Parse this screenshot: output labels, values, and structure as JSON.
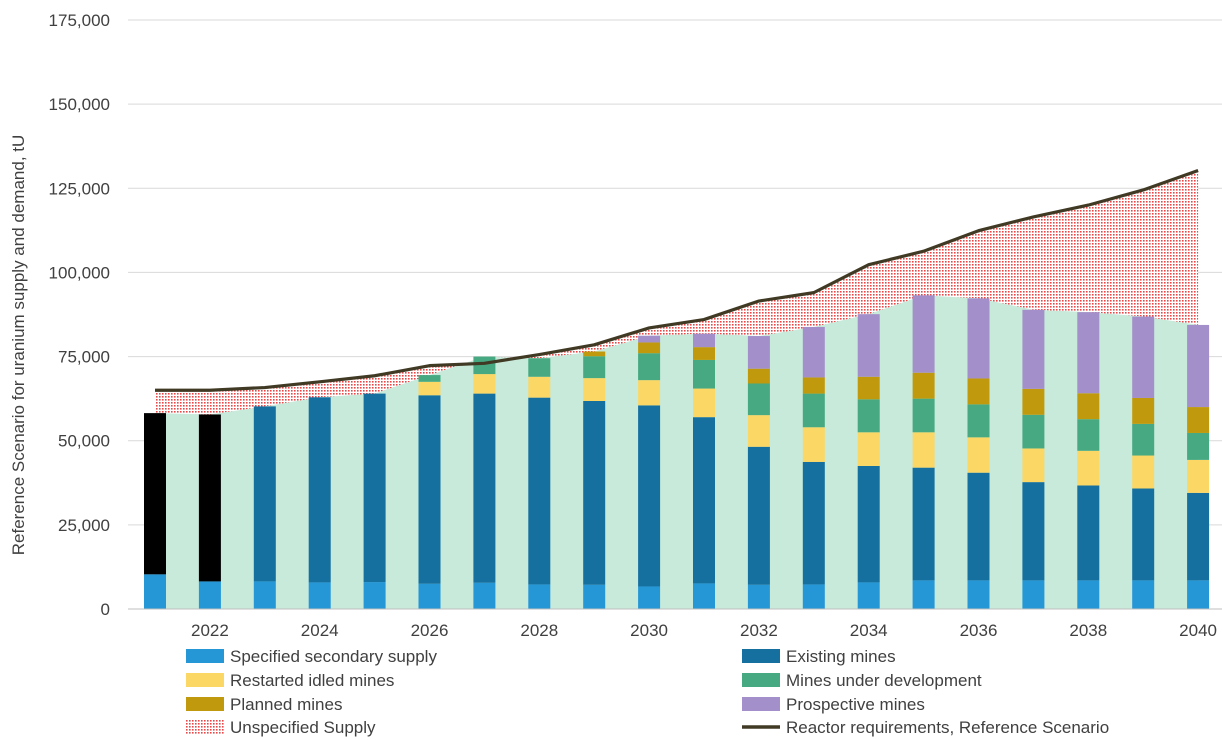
{
  "colors": {
    "specified": "#2596d6",
    "existing": "#1570a0",
    "restarted": "#fbd766",
    "development": "#46a982",
    "planned": "#c09a0c",
    "prospective": "#a38fc9",
    "unspecified": "#e84848",
    "reactor": "#403a25",
    "fill": "#c7eadb",
    "black": "#000000",
    "grid": "#d9d9d9"
  },
  "chart_data": {
    "type": "bar",
    "ylabel": "Reference Scenario for uranium supply and demand, tU",
    "ylim": [
      0,
      175000
    ],
    "yticks": [
      "0",
      "25,000",
      "50,000",
      "75,000",
      "100,000",
      "125,000",
      "150,000",
      "175,000"
    ],
    "xticks": [
      "2022",
      "2024",
      "2026",
      "2028",
      "2030",
      "2032",
      "2034",
      "2036",
      "2038",
      "2040"
    ],
    "years": [
      2021,
      2022,
      2023,
      2024,
      2025,
      2026,
      2027,
      2028,
      2029,
      2030,
      2031,
      2032,
      2033,
      2034,
      2035,
      2036,
      2037,
      2038,
      2039,
      2040
    ],
    "series": [
      {
        "name": "Specified secondary supply",
        "key": "specified",
        "values": [
          10300,
          8200,
          8200,
          7900,
          8000,
          7500,
          7800,
          7300,
          7200,
          6700,
          7600,
          7200,
          7300,
          7900,
          8500,
          8500,
          8500,
          8500,
          8500,
          8500
        ]
      },
      {
        "name": "Existing mines",
        "key": "existing",
        "values": [
          0,
          0,
          52000,
          55000,
          56000,
          56000,
          56200,
          55500,
          54600,
          53800,
          49400,
          41000,
          36400,
          34600,
          33500,
          32000,
          29200,
          28200,
          27300,
          26000
        ]
      },
      {
        "name": "Restarted idled mines",
        "key": "restarted",
        "values": [
          0,
          0,
          0,
          0,
          0,
          4000,
          5800,
          6200,
          6800,
          7500,
          8500,
          9400,
          10300,
          10000,
          10500,
          10500,
          10000,
          10300,
          9800,
          9800
        ]
      },
      {
        "name": "Mines under development",
        "key": "development",
        "values": [
          0,
          0,
          0,
          0,
          0,
          2000,
          5200,
          5500,
          6500,
          8000,
          8500,
          9400,
          10000,
          9800,
          10000,
          9800,
          10000,
          9400,
          9400,
          8000
        ]
      },
      {
        "name": "Planned mines",
        "key": "planned",
        "values": [
          0,
          0,
          0,
          0,
          0,
          0,
          0,
          0,
          1400,
          3200,
          3800,
          4400,
          4800,
          6700,
          7700,
          7700,
          7700,
          7700,
          7700,
          7700
        ]
      },
      {
        "name": "Prospective mines",
        "key": "prospective",
        "values": [
          0,
          0,
          0,
          0,
          0,
          0,
          0,
          0,
          0,
          2000,
          4000,
          9700,
          15000,
          18600,
          23000,
          23800,
          23500,
          24100,
          24200,
          24400
        ]
      },
      {
        "name": "Reactor requirements, Reference Scenario",
        "key": "reactor",
        "values": [
          65000,
          65000,
          65800,
          67500,
          69300,
          72300,
          73000,
          75600,
          78500,
          83500,
          86000,
          91500,
          94000,
          102300,
          106300,
          112400,
          116500,
          120000,
          124500,
          130300
        ]
      }
    ],
    "black_bars": [
      {
        "year": 2021,
        "value": 47900
      },
      {
        "year": 2022,
        "value": 49600
      }
    ],
    "unspecified_label": "Unspecified Supply",
    "legend": {
      "left": [
        {
          "label": "Specified secondary supply",
          "key": "specified",
          "kind": "box"
        },
        {
          "label": "Restarted idled mines",
          "key": "restarted",
          "kind": "box"
        },
        {
          "label": "Planned mines",
          "key": "planned",
          "kind": "box"
        },
        {
          "label": "Unspecified Supply",
          "key": "unspecified",
          "kind": "hatch"
        }
      ],
      "right": [
        {
          "label": "Existing mines",
          "key": "existing",
          "kind": "box"
        },
        {
          "label": "Mines under development",
          "key": "development",
          "kind": "box"
        },
        {
          "label": "Prospective mines",
          "key": "prospective",
          "kind": "box"
        },
        {
          "label": "Reactor requirements, Reference Scenario",
          "key": "reactor",
          "kind": "line"
        }
      ]
    }
  }
}
